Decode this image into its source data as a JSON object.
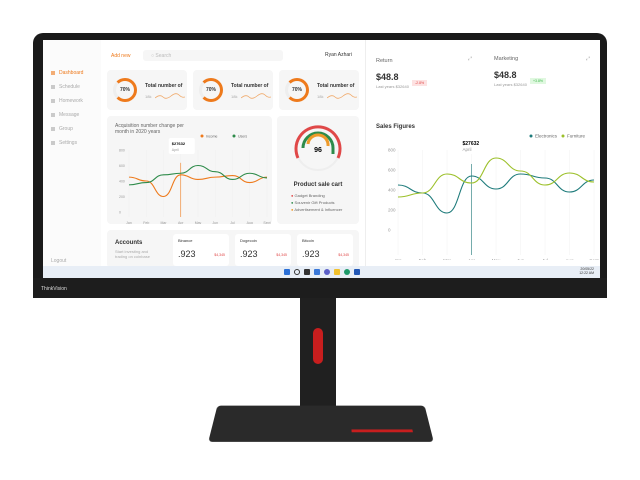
{
  "brand": "ThinkVision",
  "header": {
    "add_new": "Add new",
    "search_placeholder": "Search",
    "user": "Ryan Azhari"
  },
  "sidebar": {
    "items": [
      {
        "label": "Dashboard",
        "active": true
      },
      {
        "label": "Schedule"
      },
      {
        "label": "Homework"
      },
      {
        "label": "Message"
      },
      {
        "label": "Group"
      },
      {
        "label": "Settings"
      }
    ],
    "logout": "Logout"
  },
  "stats": [
    {
      "percent": "70%",
      "title": "Total number of",
      "sub": "18k"
    },
    {
      "percent": "70%",
      "title": "Total number of",
      "sub": "18k"
    },
    {
      "percent": "70%",
      "title": "Total number of",
      "sub": "18k"
    }
  ],
  "product": {
    "value": "96",
    "title": "Product sale cart",
    "legend": [
      {
        "label": "Gadget Branding",
        "color": "#e04848"
      },
      {
        "label": "Souvenir Gift Products",
        "color": "#2e8b4a"
      },
      {
        "label": "Advertisement & Influencer",
        "color": "#ee9a2a"
      }
    ]
  },
  "accounts": {
    "title": "Accounts",
    "subtitle": "Start investing and trading on coinbase",
    "coins": [
      {
        "name": "Binance",
        "value": ".923",
        "change": "$4,345"
      },
      {
        "name": "Dogecoin",
        "value": ".923",
        "change": "$4,345"
      },
      {
        "name": "Bitcoin",
        "value": ".923",
        "change": "$4,345"
      }
    ]
  },
  "return": {
    "title": "Return",
    "value": "$48.8",
    "badge": "-2.8%",
    "sub": "Last years $32640"
  },
  "marketing": {
    "title": "Marketing",
    "value": "$48.8",
    "badge": "+3.8%",
    "sub": "Last years $32640"
  },
  "taskbar": {
    "date": "20/05/22",
    "time": "12:22 AM"
  },
  "chart_data": [
    {
      "type": "line",
      "title": "Acquisition number change per month in 2020 years",
      "categories": [
        "Jan",
        "Feb",
        "Mar",
        "Apr",
        "May",
        "Jun",
        "Jul",
        "Aug",
        "Sept"
      ],
      "yticks": [
        "800",
        "600",
        "400",
        "200",
        "0"
      ],
      "ylim": [
        0,
        800
      ],
      "tooltip": {
        "value": "$27632",
        "label": "April"
      },
      "legend": "top-right",
      "series": [
        {
          "name": "Income",
          "color": "#ee7a1c",
          "values": [
            450,
            400,
            200,
            480,
            420,
            450,
            470,
            380,
            450
          ]
        },
        {
          "name": "Users",
          "color": "#2e8b4a",
          "values": [
            350,
            380,
            480,
            500,
            600,
            520,
            420,
            500,
            440
          ]
        }
      ]
    },
    {
      "type": "line",
      "title": "Sales Figures",
      "categories": [
        "Jan",
        "Feb",
        "Mar",
        "Apr",
        "May",
        "Jun",
        "Jul",
        "Aug",
        "Sept"
      ],
      "yticks": [
        "800",
        "600",
        "400",
        "200",
        "0"
      ],
      "ylim": [
        -200,
        800
      ],
      "tooltip": {
        "value": "$27632",
        "label": "April"
      },
      "legend": "top-right",
      "series": [
        {
          "name": "Electronics",
          "color": "#1e7b7b",
          "values": [
            450,
            370,
            170,
            540,
            410,
            560,
            520,
            380,
            500
          ]
        },
        {
          "name": "Furniture",
          "color": "#9cc02a",
          "values": [
            330,
            370,
            560,
            470,
            720,
            590,
            450,
            570,
            480
          ]
        }
      ]
    }
  ]
}
